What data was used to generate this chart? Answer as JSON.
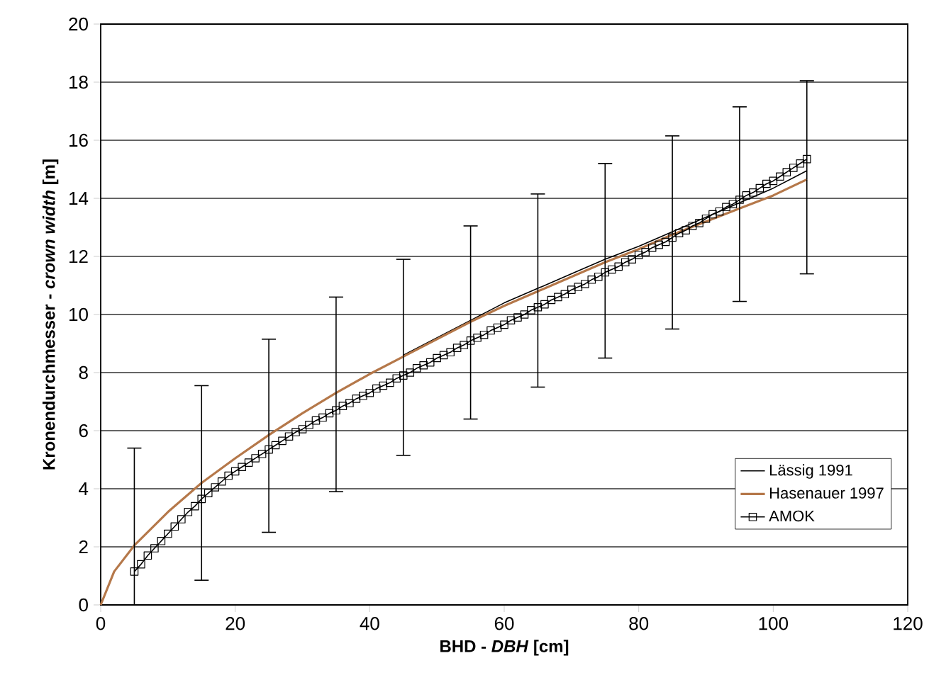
{
  "chart_data": {
    "type": "line",
    "xlabel": "BHD - *DBH*  [cm]",
    "ylabel": "Kronendurchmesser - *crown width*  [m]",
    "xlim": [
      0,
      120
    ],
    "xticks": [
      0,
      20,
      40,
      60,
      80,
      100,
      120
    ],
    "ylim": [
      0,
      20
    ],
    "yticks": [
      0,
      2,
      4,
      6,
      8,
      10,
      12,
      14,
      16,
      18,
      20
    ],
    "grid": "y",
    "legend": "bottom right",
    "line_style": "solid",
    "series": [
      {
        "name": "Lässig 1991",
        "color": "#000000",
        "marker": "none",
        "x": [
          45,
          50,
          55,
          60,
          65,
          70,
          75,
          80,
          85,
          90,
          95,
          100,
          105
        ],
        "values": [
          8.6,
          9.2,
          9.8,
          10.4,
          10.9,
          11.4,
          11.9,
          12.35,
          12.85,
          13.35,
          13.85,
          14.35,
          14.95
        ]
      },
      {
        "name": "Hasenauer 1997",
        "color": "#b5784a",
        "marker": "none",
        "x": [
          0,
          2,
          5,
          10,
          15,
          20,
          25,
          30,
          35,
          40,
          45,
          50,
          55,
          60,
          65,
          70,
          75,
          80,
          85,
          90,
          95,
          100,
          105
        ],
        "values": [
          0,
          1.15,
          2.05,
          3.2,
          4.2,
          5.05,
          5.85,
          6.6,
          7.3,
          7.95,
          8.55,
          9.15,
          9.75,
          10.3,
          10.8,
          11.3,
          11.8,
          12.25,
          12.75,
          13.2,
          13.65,
          14.1,
          14.65
        ],
        "errors": [
          null,
          null,
          [
            0,
            5.4
          ],
          null,
          [
            0.85,
            7.55
          ],
          null,
          [
            2.5,
            9.15
          ],
          null,
          [
            3.9,
            10.6
          ],
          null,
          [
            5.15,
            11.9
          ],
          null,
          [
            6.4,
            13.05
          ],
          null,
          [
            7.5,
            14.15
          ],
          null,
          [
            8.5,
            15.2
          ],
          null,
          [
            9.5,
            16.15
          ],
          null,
          [
            10.45,
            17.15
          ],
          null,
          [
            11.4,
            18.05
          ]
        ]
      },
      {
        "name": "AMOK",
        "color": "#000000",
        "marker": "square",
        "x": [
          5,
          6,
          7,
          8,
          9,
          10,
          11,
          12,
          13,
          14,
          15,
          16,
          17,
          18,
          19,
          20,
          21,
          22,
          23,
          24,
          25,
          26,
          27,
          28,
          29,
          30,
          31,
          32,
          33,
          34,
          35,
          36,
          37,
          38,
          39,
          40,
          41,
          42,
          43,
          44,
          45,
          46,
          47,
          48,
          49,
          50,
          51,
          52,
          53,
          54,
          55,
          56,
          57,
          58,
          59,
          60,
          61,
          62,
          63,
          64,
          65,
          66,
          67,
          68,
          69,
          70,
          71,
          72,
          73,
          74,
          75,
          76,
          77,
          78,
          79,
          80,
          81,
          82,
          83,
          84,
          85,
          86,
          87,
          88,
          89,
          90,
          91,
          92,
          93,
          94,
          95,
          96,
          97,
          98,
          99,
          100,
          101,
          102,
          103,
          104,
          105
        ],
        "values": [
          1.15,
          1.4,
          1.7,
          1.95,
          2.2,
          2.45,
          2.7,
          2.95,
          3.2,
          3.4,
          3.65,
          3.85,
          4.05,
          4.25,
          4.45,
          4.6,
          4.75,
          4.9,
          5.05,
          5.2,
          5.35,
          5.5,
          5.65,
          5.8,
          5.95,
          6.05,
          6.2,
          6.35,
          6.45,
          6.6,
          6.7,
          6.85,
          6.95,
          7.1,
          7.2,
          7.3,
          7.45,
          7.55,
          7.65,
          7.8,
          7.9,
          8.0,
          8.15,
          8.25,
          8.35,
          8.5,
          8.6,
          8.7,
          8.85,
          8.95,
          9.1,
          9.2,
          9.3,
          9.45,
          9.55,
          9.65,
          9.8,
          9.9,
          10.0,
          10.15,
          10.25,
          10.35,
          10.5,
          10.6,
          10.7,
          10.85,
          10.95,
          11.05,
          11.2,
          11.3,
          11.45,
          11.55,
          11.65,
          11.8,
          11.9,
          12.05,
          12.15,
          12.3,
          12.4,
          12.5,
          12.65,
          12.8,
          12.9,
          13.05,
          13.15,
          13.3,
          13.45,
          13.55,
          13.7,
          13.8,
          13.95,
          14.1,
          14.2,
          14.35,
          14.5,
          14.6,
          14.75,
          14.9,
          15.05,
          15.2,
          15.35
        ]
      }
    ]
  }
}
